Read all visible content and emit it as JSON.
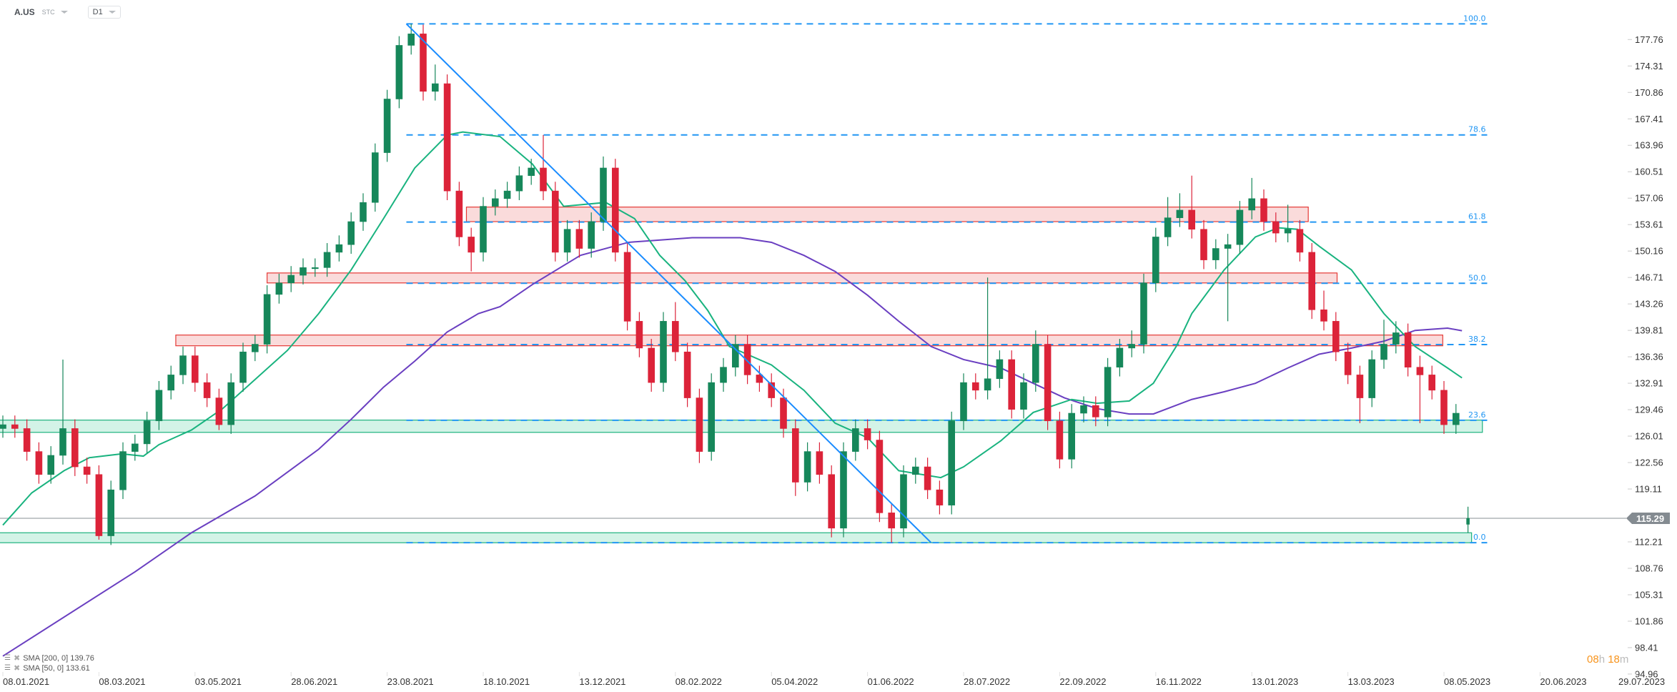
{
  "header": {
    "symbol": "A.US",
    "market": "STC",
    "timeframe": "D1"
  },
  "legend": [
    {
      "label": "SMA [200,  0] 139.76"
    },
    {
      "label": "SMA [50,  0] 133.61"
    }
  ],
  "timer": {
    "hours": "08",
    "h": "h",
    "minutes": "18",
    "m": "m"
  },
  "price_tag": "115.29",
  "colors": {
    "up": "#16875a",
    "down": "#dc2339",
    "sma50": "#19b37f",
    "sma200": "#6a3fc1",
    "fib": "#2196f3",
    "trendline": "#1a8cff",
    "resistance_fill": "#fadbdb",
    "resistance_border": "#e53935",
    "support_fill": "#d3f3e7",
    "support_border": "#1db27d",
    "price_line": "#8a9096",
    "price_tag_bg": "#848b91"
  },
  "chart_data": {
    "type": "candlestick",
    "interval_note": "",
    "y_ticks": [
      177.76,
      174.31,
      170.86,
      167.41,
      163.96,
      160.51,
      157.06,
      153.61,
      150.16,
      146.71,
      143.26,
      139.81,
      136.36,
      132.91,
      129.46,
      126.01,
      122.56,
      119.11,
      112.21,
      108.76,
      105.31,
      101.86,
      98.41,
      94.96
    ],
    "ylim": [
      94.96,
      181
    ],
    "x_labels": [
      "08.01.2021",
      "08.03.2021",
      "03.05.2021",
      "28.06.2021",
      "23.08.2021",
      "18.10.2021",
      "13.12.2021",
      "08.02.2022",
      "05.04.2022",
      "01.06.2022",
      "28.07.2022",
      "22.09.2022",
      "16.11.2022",
      "13.01.2023",
      "13.03.2023",
      "08.05.2023",
      "20.06.2023",
      "29.07.2023"
    ],
    "candles": [
      [
        127,
        128.7,
        125.8,
        127.5
      ],
      [
        127.5,
        128.7,
        125.8,
        127
      ],
      [
        127,
        128.2,
        122.8,
        124
      ],
      [
        124,
        125.2,
        119.8,
        121
      ],
      [
        121,
        124.7,
        119.8,
        123.5
      ],
      [
        123.5,
        136,
        122.3,
        127
      ],
      [
        127,
        128.2,
        120.8,
        122
      ],
      [
        122,
        123.2,
        119.8,
        121
      ],
      [
        121,
        122.2,
        112.5,
        113
      ],
      [
        113,
        120.2,
        111.8,
        119
      ],
      [
        119,
        125.2,
        117.8,
        124
      ],
      [
        124,
        126.2,
        122.8,
        125
      ],
      [
        125,
        129.2,
        123.8,
        128
      ],
      [
        128,
        133.2,
        126.8,
        132
      ],
      [
        132,
        135.2,
        130.8,
        134
      ],
      [
        134,
        137.7,
        132.8,
        136.5
      ],
      [
        136.5,
        137.7,
        131.8,
        133
      ],
      [
        133,
        134.2,
        129.8,
        131
      ],
      [
        131,
        132.2,
        126.8,
        127.5
      ],
      [
        127.5,
        134.2,
        126.3,
        133
      ],
      [
        133,
        138.2,
        131.8,
        137
      ],
      [
        137,
        139.2,
        135.8,
        138
      ],
      [
        138,
        145.7,
        136.8,
        144.5
      ],
      [
        144.5,
        147.2,
        143.3,
        146
      ],
      [
        146,
        148.2,
        144.8,
        147
      ],
      [
        147,
        149.2,
        145.8,
        148
      ],
      [
        148,
        149.2,
        146.8,
        148
      ],
      [
        148,
        151.2,
        146.8,
        150
      ],
      [
        150,
        152.2,
        148.8,
        151
      ],
      [
        151,
        155.2,
        149.8,
        154
      ],
      [
        154,
        157.7,
        152.8,
        156.5
      ],
      [
        156.5,
        164.2,
        155.3,
        163
      ],
      [
        163,
        171.2,
        161.8,
        170
      ],
      [
        170,
        178.2,
        168.8,
        177
      ],
      [
        177,
        179.8,
        175.8,
        178.5
      ],
      [
        178.5,
        179.7,
        169.8,
        171
      ],
      [
        171,
        174.5,
        169.8,
        172
      ],
      [
        172,
        173.2,
        156.8,
        158
      ],
      [
        158,
        159.2,
        150.8,
        152
      ],
      [
        152,
        153.2,
        147.5,
        150
      ],
      [
        150,
        157.2,
        148.8,
        156
      ],
      [
        156,
        158.2,
        154.8,
        157
      ],
      [
        157,
        159.2,
        155.8,
        158
      ],
      [
        158,
        161.2,
        156.8,
        160
      ],
      [
        160,
        162.2,
        158.8,
        161
      ],
      [
        161,
        165.3,
        156.8,
        158
      ],
      [
        158,
        159.2,
        148.8,
        150
      ],
      [
        150,
        154.2,
        148.8,
        153
      ],
      [
        153,
        154.2,
        149.3,
        150.5
      ],
      [
        150.5,
        155.2,
        149.3,
        154
      ],
      [
        154,
        162.5,
        152.8,
        161
      ],
      [
        161,
        162.2,
        148.8,
        150
      ],
      [
        150,
        151.2,
        139.8,
        141
      ],
      [
        141,
        142.2,
        136.3,
        137.5
      ],
      [
        137.5,
        138.7,
        131.8,
        133
      ],
      [
        133,
        142.2,
        131.8,
        141
      ],
      [
        141,
        143.5,
        135.8,
        137
      ],
      [
        137,
        138.2,
        129.8,
        131
      ],
      [
        131,
        132.2,
        122.5,
        124
      ],
      [
        124,
        134.2,
        122.8,
        133
      ],
      [
        133,
        136.2,
        131.8,
        135
      ],
      [
        135,
        139.2,
        133.8,
        138
      ],
      [
        138,
        139.2,
        132.8,
        134
      ],
      [
        134,
        135.2,
        131.8,
        133
      ],
      [
        133,
        134.2,
        129.8,
        131
      ],
      [
        131,
        132.2,
        125.8,
        127
      ],
      [
        127,
        128.2,
        118.2,
        120
      ],
      [
        120,
        125.2,
        118.8,
        124
      ],
      [
        124,
        125.2,
        119.8,
        121
      ],
      [
        121,
        122.2,
        112.8,
        114
      ],
      [
        114,
        125.2,
        112.8,
        124
      ],
      [
        124,
        128.2,
        122.8,
        127
      ],
      [
        127,
        128.2,
        124.3,
        125.5
      ],
      [
        125.5,
        126.7,
        114.8,
        116
      ],
      [
        116,
        117.2,
        112.1,
        114
      ],
      [
        114,
        122.2,
        112.8,
        121
      ],
      [
        121,
        123.2,
        119.8,
        122
      ],
      [
        122,
        123.2,
        117.8,
        119
      ],
      [
        119,
        120.2,
        115.8,
        117
      ],
      [
        117,
        129.2,
        115.8,
        128
      ],
      [
        128,
        134.2,
        126.8,
        133
      ],
      [
        133,
        134.2,
        130.8,
        132
      ],
      [
        132,
        146.7,
        130.8,
        133.5
      ],
      [
        133.5,
        137.2,
        132.3,
        136
      ],
      [
        136,
        137.2,
        128.3,
        129.5
      ],
      [
        129.5,
        134.2,
        128.3,
        133
      ],
      [
        133,
        139.8,
        131.8,
        138
      ],
      [
        138,
        139.2,
        126.8,
        128
      ],
      [
        128,
        129.2,
        121.8,
        123
      ],
      [
        123,
        130.2,
        121.8,
        129
      ],
      [
        129,
        131.2,
        127.8,
        130
      ],
      [
        130,
        131.2,
        127.3,
        128.5
      ],
      [
        128.5,
        136.2,
        127.3,
        135
      ],
      [
        135,
        138.7,
        133.8,
        137.5
      ],
      [
        137.5,
        139.8,
        136.3,
        138
      ],
      [
        138,
        147.2,
        136.8,
        146
      ],
      [
        146,
        153.2,
        144.8,
        152
      ],
      [
        152,
        157.2,
        150.8,
        154.5
      ],
      [
        154.5,
        157.7,
        153.3,
        155.5
      ],
      [
        155.5,
        160,
        151.8,
        153
      ],
      [
        153,
        154.2,
        147.8,
        149
      ],
      [
        149,
        151.7,
        147.8,
        150.5
      ],
      [
        150.5,
        152.4,
        141,
        151
      ],
      [
        151,
        156.7,
        149.8,
        155.5
      ],
      [
        155.5,
        159.7,
        154.3,
        157
      ],
      [
        157,
        158.2,
        152.8,
        154
      ],
      [
        154,
        155.2,
        151.3,
        152.5
      ],
      [
        152.5,
        156.2,
        151.3,
        153
      ],
      [
        153,
        154.2,
        148.8,
        150
      ],
      [
        150,
        151.2,
        141.3,
        142.5
      ],
      [
        142.5,
        145,
        139.8,
        141
      ],
      [
        141,
        142.2,
        135.8,
        137
      ],
      [
        137,
        138.2,
        132.8,
        134
      ],
      [
        134,
        135.2,
        127.7,
        131
      ],
      [
        131,
        137.2,
        129.8,
        136
      ],
      [
        136,
        141.2,
        134.8,
        138
      ],
      [
        138,
        141,
        136.8,
        139.5
      ],
      [
        139.5,
        140.7,
        133.8,
        135
      ],
      [
        135,
        136.5,
        127.7,
        134
      ],
      [
        134,
        135.2,
        130.8,
        132
      ],
      [
        132,
        133.2,
        126.3,
        127.5
      ],
      [
        127.5,
        130.2,
        126.3,
        129
      ],
      [
        114.5,
        116.8,
        113.4,
        115.29
      ]
    ],
    "last_price": 115.29,
    "sma": [
      {
        "name": "SMA [200, 0]",
        "value": 139.76,
        "points": [
          [
            0,
            97.3
          ],
          [
            11,
            108.3
          ],
          [
            15.7,
            113.4
          ],
          [
            21,
            118.2
          ],
          [
            26.3,
            124.3
          ],
          [
            29,
            128.2
          ],
          [
            31.7,
            132.4
          ],
          [
            34.3,
            135.8
          ],
          [
            37,
            139.6
          ],
          [
            39.6,
            142
          ],
          [
            41.4,
            142.9
          ],
          [
            44.1,
            145.8
          ],
          [
            48.1,
            149.6
          ],
          [
            52.1,
            151.3
          ],
          [
            57.4,
            151.9
          ],
          [
            61.4,
            151.9
          ],
          [
            64,
            151.3
          ],
          [
            66.7,
            149.6
          ],
          [
            69.3,
            147.5
          ],
          [
            72,
            144.4
          ],
          [
            74.6,
            141
          ],
          [
            77.3,
            137.7
          ],
          [
            80,
            136
          ],
          [
            83.1,
            134.9
          ],
          [
            85.8,
            132.9
          ],
          [
            88.4,
            131
          ],
          [
            91.1,
            129.6
          ],
          [
            93.8,
            128.9
          ],
          [
            95.8,
            128.9
          ],
          [
            99,
            130.8
          ],
          [
            101.7,
            131.8
          ],
          [
            104.3,
            132.9
          ],
          [
            107,
            134.9
          ],
          [
            109.6,
            136.7
          ],
          [
            112.3,
            137.5
          ],
          [
            115,
            138.4
          ],
          [
            117.6,
            139.8
          ],
          [
            120.3,
            140.1
          ],
          [
            121.5,
            139.76
          ]
        ]
      },
      {
        "name": "SMA [50, 0]",
        "value": 133.61,
        "points": [
          [
            0,
            114.4
          ],
          [
            2.4,
            118.6
          ],
          [
            5.1,
            121.5
          ],
          [
            7.2,
            123.2
          ],
          [
            9.9,
            123.7
          ],
          [
            11.7,
            123.4
          ],
          [
            13,
            124.9
          ],
          [
            15.7,
            126.8
          ],
          [
            18.3,
            129.6
          ],
          [
            21,
            133.4
          ],
          [
            23.7,
            137.2
          ],
          [
            26.3,
            142
          ],
          [
            29,
            147.7
          ],
          [
            31.7,
            154.4
          ],
          [
            34.3,
            161
          ],
          [
            37,
            165.3
          ],
          [
            38.3,
            165.7
          ],
          [
            41.4,
            165.1
          ],
          [
            44.1,
            161.5
          ],
          [
            46.7,
            156
          ],
          [
            50.2,
            156.5
          ],
          [
            52.6,
            154.4
          ],
          [
            54.7,
            149.6
          ],
          [
            56.8,
            146.3
          ],
          [
            58.7,
            142.4
          ],
          [
            60.5,
            137.7
          ],
          [
            64,
            135.3
          ],
          [
            66.7,
            132
          ],
          [
            69.3,
            127.7
          ],
          [
            72,
            125.8
          ],
          [
            74.6,
            121.5
          ],
          [
            78.1,
            120.6
          ],
          [
            80,
            122
          ],
          [
            83.1,
            125.4
          ],
          [
            85.8,
            129.1
          ],
          [
            89,
            130.8
          ],
          [
            91.1,
            130.3
          ],
          [
            93.8,
            130.6
          ],
          [
            95.8,
            132.9
          ],
          [
            97.7,
            137.7
          ],
          [
            99,
            142
          ],
          [
            101.7,
            147.7
          ],
          [
            104.3,
            152
          ],
          [
            106.2,
            153.2
          ],
          [
            107.8,
            153
          ],
          [
            109.6,
            150.8
          ],
          [
            112.3,
            147.7
          ],
          [
            115,
            142
          ],
          [
            117.6,
            137.7
          ],
          [
            120.3,
            134.9
          ],
          [
            121.5,
            133.61
          ]
        ]
      }
    ],
    "fibonacci": {
      "high": 179.8,
      "low": 112.1,
      "levels": [
        {
          "label": "100.0",
          "ratio": 1
        },
        {
          "label": "78.6",
          "ratio": 0.786
        },
        {
          "label": "61.8",
          "ratio": 0.618
        },
        {
          "label": "50.0",
          "ratio": 0.5
        },
        {
          "label": "38.2",
          "ratio": 0.382
        },
        {
          "label": "23.6",
          "ratio": 0.236
        },
        {
          "label": "0.0",
          "ratio": 0
        }
      ],
      "from_index": 33.6,
      "to_index": 123.6
    },
    "trendline": {
      "from": [
        33.6,
        179.8
      ],
      "to": [
        77.3,
        112.1
      ]
    },
    "zones": [
      {
        "kind": "resistance",
        "from_index": 38.6,
        "to_index": 108.7,
        "low": 154.0,
        "high": 155.9
      },
      {
        "kind": "resistance",
        "from_index": 22,
        "to_index": 111.1,
        "low": 146.0,
        "high": 147.3
      },
      {
        "kind": "resistance",
        "from_index": 14.4,
        "to_index": 119.9,
        "low": 137.8,
        "high": 139.2
      },
      {
        "kind": "support",
        "from_index": -0.3,
        "to_index": 123.2,
        "low": 126.5,
        "high": 128.1
      },
      {
        "kind": "support",
        "from_index": -0.3,
        "to_index": 122.3,
        "low": 112.1,
        "high": 113.4
      }
    ]
  }
}
